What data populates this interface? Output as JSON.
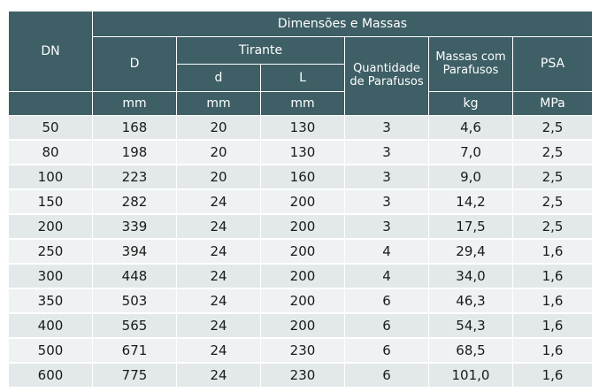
{
  "header": {
    "group_title": "Dimensões e Massas",
    "dn": "DN",
    "d_outer": "D",
    "tirante": "Tirante",
    "d_small": "d",
    "l": "L",
    "quantidade": "Quantidade de Parafusos",
    "massas": "Massas com Parafusos",
    "psa": "PSA",
    "unit_d": "mm",
    "unit_d_small": "mm",
    "unit_l": "mm",
    "unit_massas": "kg",
    "unit_psa": "MPa"
  },
  "rows": [
    {
      "dn": "50",
      "d": "168",
      "ds": "20",
      "l": "130",
      "q": "3",
      "m": "4,6",
      "psa": "2,5"
    },
    {
      "dn": "80",
      "d": "198",
      "ds": "20",
      "l": "130",
      "q": "3",
      "m": "7,0",
      "psa": "2,5"
    },
    {
      "dn": "100",
      "d": "223",
      "ds": "20",
      "l": "160",
      "q": "3",
      "m": "9,0",
      "psa": "2,5"
    },
    {
      "dn": "150",
      "d": "282",
      "ds": "24",
      "l": "200",
      "q": "3",
      "m": "14,2",
      "psa": "2,5"
    },
    {
      "dn": "200",
      "d": "339",
      "ds": "24",
      "l": "200",
      "q": "3",
      "m": "17,5",
      "psa": "2,5"
    },
    {
      "dn": "250",
      "d": "394",
      "ds": "24",
      "l": "200",
      "q": "4",
      "m": "29,4",
      "psa": "1,6"
    },
    {
      "dn": "300",
      "d": "448",
      "ds": "24",
      "l": "200",
      "q": "4",
      "m": "34,0",
      "psa": "1,6"
    },
    {
      "dn": "350",
      "d": "503",
      "ds": "24",
      "l": "200",
      "q": "6",
      "m": "46,3",
      "psa": "1,6"
    },
    {
      "dn": "400",
      "d": "565",
      "ds": "24",
      "l": "200",
      "q": "6",
      "m": "54,3",
      "psa": "1,6"
    },
    {
      "dn": "500",
      "d": "671",
      "ds": "24",
      "l": "230",
      "q": "6",
      "m": "68,5",
      "psa": "1,6"
    },
    {
      "dn": "600",
      "d": "775",
      "ds": "24",
      "l": "230",
      "q": "6",
      "m": "101,0",
      "psa": "1,6"
    }
  ]
}
